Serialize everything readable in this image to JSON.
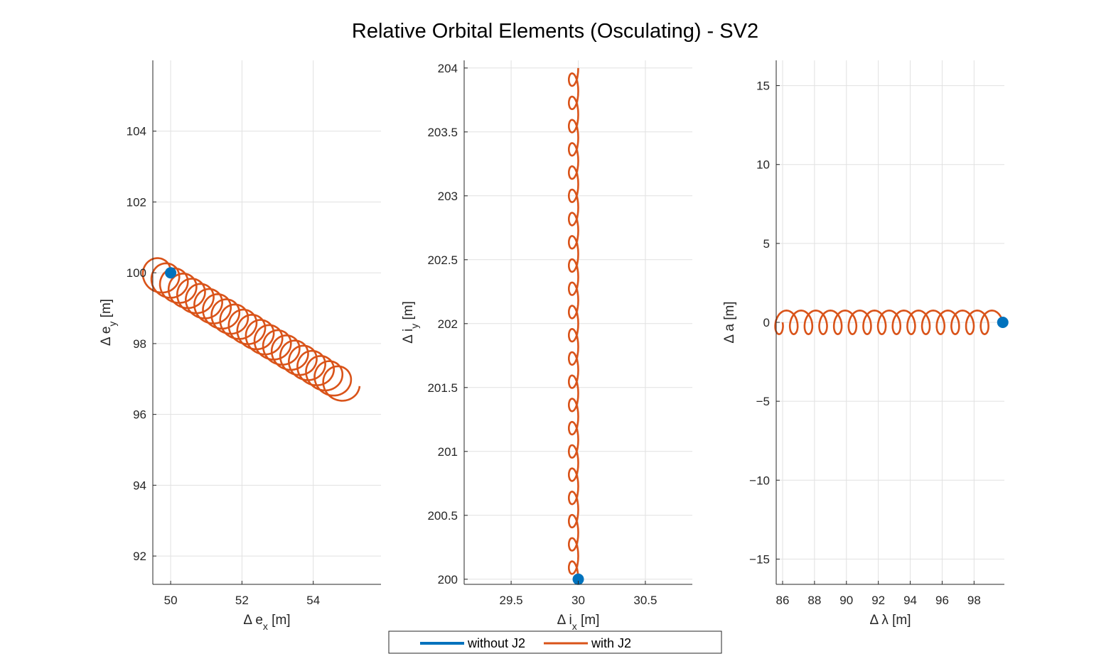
{
  "figure": {
    "title": "Relative Orbital Elements (Osculating) - SV2"
  },
  "legend": {
    "location": "bottom-center",
    "entries": [
      {
        "label": "without J2",
        "color": "#0072BD"
      },
      {
        "label": "with J2",
        "color": "#D95319"
      }
    ]
  },
  "chart_data": [
    {
      "type": "line",
      "xlabel": "Δ e_x [m]",
      "ylabel": "Δ e_y [m]",
      "xlim": [
        49.5,
        55.9
      ],
      "ylim": [
        91.2,
        106
      ],
      "xticks": [
        50,
        52,
        54
      ],
      "yticks": [
        92,
        94,
        96,
        98,
        100,
        102,
        104
      ],
      "grid": true,
      "series": [
        {
          "name": "without J2",
          "color": "#0072BD",
          "marker_at": [
            50,
            100
          ]
        },
        {
          "name": "with J2",
          "color": "#D95319",
          "start": [
            50,
            100
          ],
          "end": [
            55.3,
            96.8
          ],
          "loop_radius": [
            0.45,
            0.45
          ],
          "loops": 22
        }
      ]
    },
    {
      "type": "line",
      "xlabel": "Δ i_x [m]",
      "ylabel": "Δ i_y [m]",
      "xlim": [
        29.15,
        30.85
      ],
      "ylim": [
        199.96,
        204.06
      ],
      "xticks": [
        29.5,
        30,
        30.5
      ],
      "yticks": [
        200,
        200.5,
        201,
        201.5,
        202,
        202.5,
        203,
        203.5,
        204
      ],
      "grid": true,
      "series": [
        {
          "name": "without J2",
          "color": "#0072BD",
          "marker_at": [
            30,
            200
          ]
        },
        {
          "name": "with J2",
          "color": "#D95319",
          "start": [
            30,
            200
          ],
          "end": [
            30,
            204.0
          ],
          "loop_radius": [
            0.035,
            0.09
          ],
          "loops": 22
        }
      ]
    },
    {
      "type": "line",
      "xlabel": "Δ λ [m]",
      "ylabel": "Δ a [m]",
      "xlim": [
        85.6,
        99.9
      ],
      "ylim": [
        -16.6,
        16.6
      ],
      "xticks": [
        86,
        88,
        90,
        92,
        94,
        96,
        98
      ],
      "yticks": [
        -15,
        -10,
        -5,
        0,
        5,
        10,
        15
      ],
      "grid": true,
      "series": [
        {
          "name": "without J2",
          "color": "#0072BD",
          "marker_at": [
            99.8,
            0
          ]
        },
        {
          "name": "with J2",
          "color": "#D95319",
          "start": [
            99.8,
            0
          ],
          "end": [
            86.0,
            0
          ],
          "loop_radius": [
            0.45,
            0.75
          ],
          "loops": 15
        }
      ]
    }
  ]
}
